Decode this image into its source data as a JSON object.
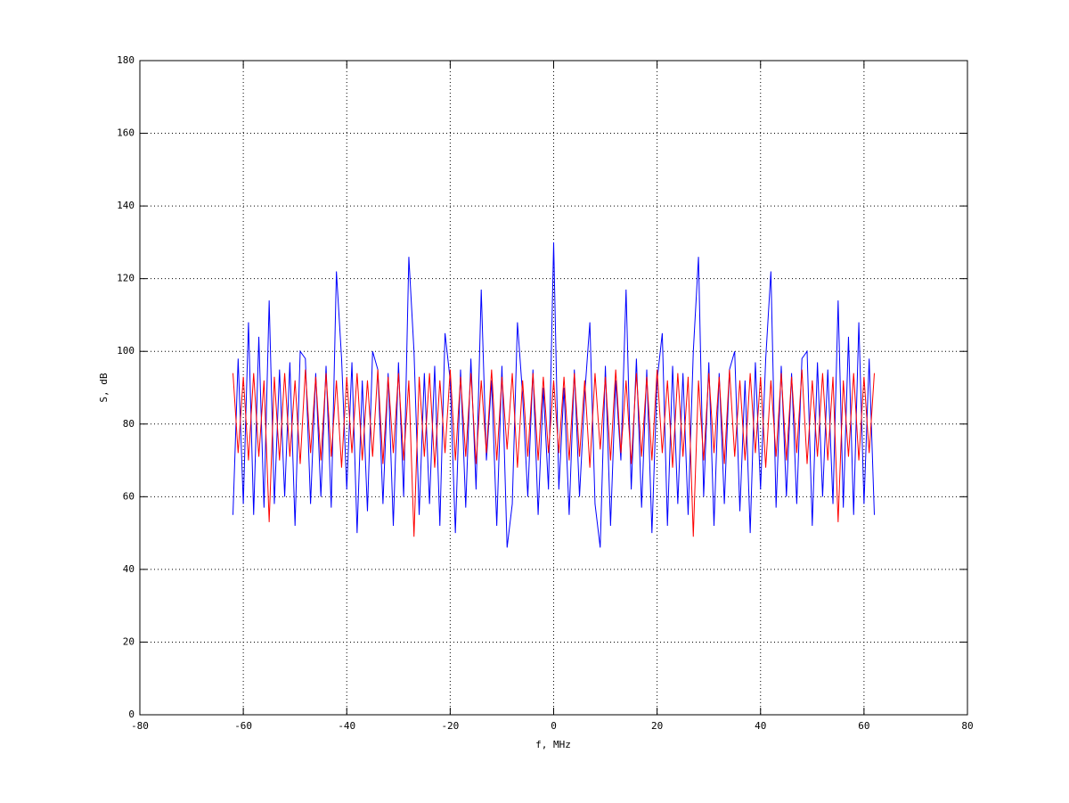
{
  "chart_data": {
    "type": "line",
    "xlabel": "f, MHz",
    "ylabel": "S, dB",
    "xlim": [
      -80,
      80
    ],
    "xticks": [
      -80,
      -60,
      -40,
      -20,
      0,
      20,
      40,
      60,
      80
    ],
    "ylim": [
      0,
      180
    ],
    "yticks": [
      0,
      20,
      40,
      60,
      80,
      100,
      120,
      140,
      160,
      180
    ],
    "grid": true,
    "x": [
      -62,
      -61,
      -60,
      -59,
      -58,
      -57,
      -56,
      -55,
      -54,
      -53,
      -52,
      -51,
      -50,
      -49,
      -48,
      -47,
      -46,
      -45,
      -44,
      -43,
      -42,
      -41,
      -40,
      -39,
      -38,
      -37,
      -36,
      -35,
      -34,
      -33,
      -32,
      -31,
      -30,
      -29,
      -28,
      -27,
      -26,
      -25,
      -24,
      -23,
      -22,
      -21,
      -20,
      -19,
      -18,
      -17,
      -16,
      -15,
      -14,
      -13,
      -12,
      -11,
      -10,
      -9,
      -8,
      -7,
      -6,
      -5,
      -4,
      -3,
      -2,
      -1,
      0,
      1,
      2,
      3,
      4,
      5,
      6,
      7,
      8,
      9,
      10,
      11,
      12,
      13,
      14,
      15,
      16,
      17,
      18,
      19,
      20,
      21,
      22,
      23,
      24,
      25,
      26,
      27,
      28,
      29,
      30,
      31,
      32,
      33,
      34,
      35,
      36,
      37,
      38,
      39,
      40,
      41,
      42,
      43,
      44,
      45,
      46,
      47,
      48,
      49,
      50,
      51,
      52,
      53,
      54,
      55,
      56,
      57,
      58,
      59,
      60,
      61,
      62
    ],
    "series": [
      {
        "color": "#0000ff",
        "values": [
          55,
          98,
          58,
          108,
          55,
          104,
          57,
          114,
          58,
          95,
          60,
          97,
          52,
          100,
          98,
          58,
          94,
          60,
          96,
          57,
          122,
          98,
          62,
          97,
          50,
          92,
          56,
          100,
          95,
          58,
          94,
          52,
          97,
          60,
          126,
          100,
          55,
          94,
          58,
          96,
          52,
          105,
          92,
          50,
          95,
          57,
          98,
          62,
          117,
          70,
          92,
          52,
          96,
          46,
          58,
          108,
          88,
          60,
          95,
          55,
          90,
          62,
          130,
          62,
          90,
          55,
          95,
          60,
          88,
          108,
          58,
          46,
          96,
          52,
          92,
          70,
          117,
          62,
          98,
          57,
          95,
          50,
          92,
          105,
          52,
          96,
          58,
          94,
          55,
          100,
          126,
          60,
          97,
          52,
          94,
          58,
          95,
          100,
          56,
          92,
          50,
          97,
          62,
          98,
          122,
          57,
          96,
          60,
          94,
          58,
          98,
          100,
          52,
          97,
          60,
          95,
          58,
          114,
          57,
          104,
          55,
          108,
          58,
          98,
          55
        ]
      },
      {
        "color": "#ff0000",
        "values": [
          94,
          72,
          93,
          70,
          94,
          71,
          92,
          53,
          93,
          70,
          94,
          71,
          92,
          69,
          95,
          72,
          93,
          70,
          94,
          71,
          92,
          68,
          93,
          72,
          94,
          70,
          92,
          71,
          95,
          69,
          93,
          72,
          94,
          70,
          92,
          49,
          93,
          71,
          94,
          68,
          92,
          72,
          95,
          70,
          93,
          71,
          94,
          69,
          92,
          72,
          95,
          70,
          93,
          73,
          94,
          68,
          92,
          71,
          94,
          70,
          93,
          72,
          92,
          72,
          93,
          70,
          94,
          71,
          92,
          68,
          94,
          73,
          93,
          70,
          95,
          72,
          92,
          69,
          94,
          71,
          93,
          70,
          95,
          72,
          92,
          68,
          94,
          71,
          93,
          49,
          92,
          70,
          94,
          72,
          93,
          69,
          95,
          71,
          92,
          70,
          94,
          72,
          93,
          68,
          92,
          71,
          94,
          70,
          93,
          72,
          95,
          69,
          92,
          71,
          94,
          70,
          93,
          53,
          92,
          71,
          94,
          70,
          93,
          72,
          94
        ]
      }
    ]
  }
}
